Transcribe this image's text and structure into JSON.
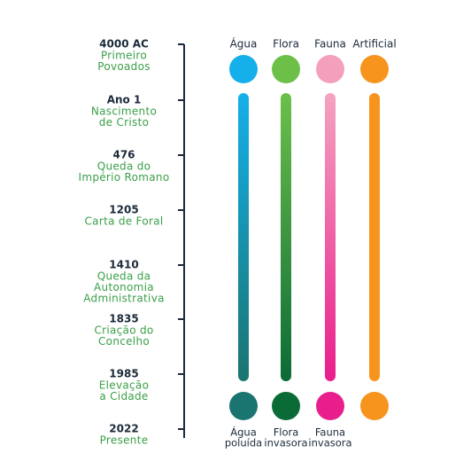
{
  "timeline": [
    {
      "year": "4000 AC",
      "lines": [
        "Primeiro",
        "Povoados"
      ]
    },
    {
      "year": "Ano 1",
      "lines": [
        "Nascimento",
        "de Cristo"
      ]
    },
    {
      "year": "476",
      "lines": [
        "Queda do",
        "Império Romano"
      ]
    },
    {
      "year": "1205",
      "lines": [
        "Carta de Foral"
      ]
    },
    {
      "year": "1410",
      "lines": [
        "Queda da",
        "Autonomia",
        "Administrativa"
      ]
    },
    {
      "year": "1835",
      "lines": [
        "Criação do",
        "Concelho"
      ]
    },
    {
      "year": "1985",
      "lines": [
        "Elevação",
        "a Cidade"
      ]
    },
    {
      "year": "2022",
      "lines": [
        "Presente"
      ]
    }
  ],
  "columns": [
    {
      "name": "Água",
      "end_lines": [
        "Água",
        "poluída"
      ]
    },
    {
      "name": "Flora",
      "end_lines": [
        "Flora",
        "invasora"
      ]
    },
    {
      "name": "Fauna",
      "end_lines": [
        "Fauna",
        "invasora"
      ]
    },
    {
      "name": "Artificial",
      "end_lines": []
    }
  ]
}
